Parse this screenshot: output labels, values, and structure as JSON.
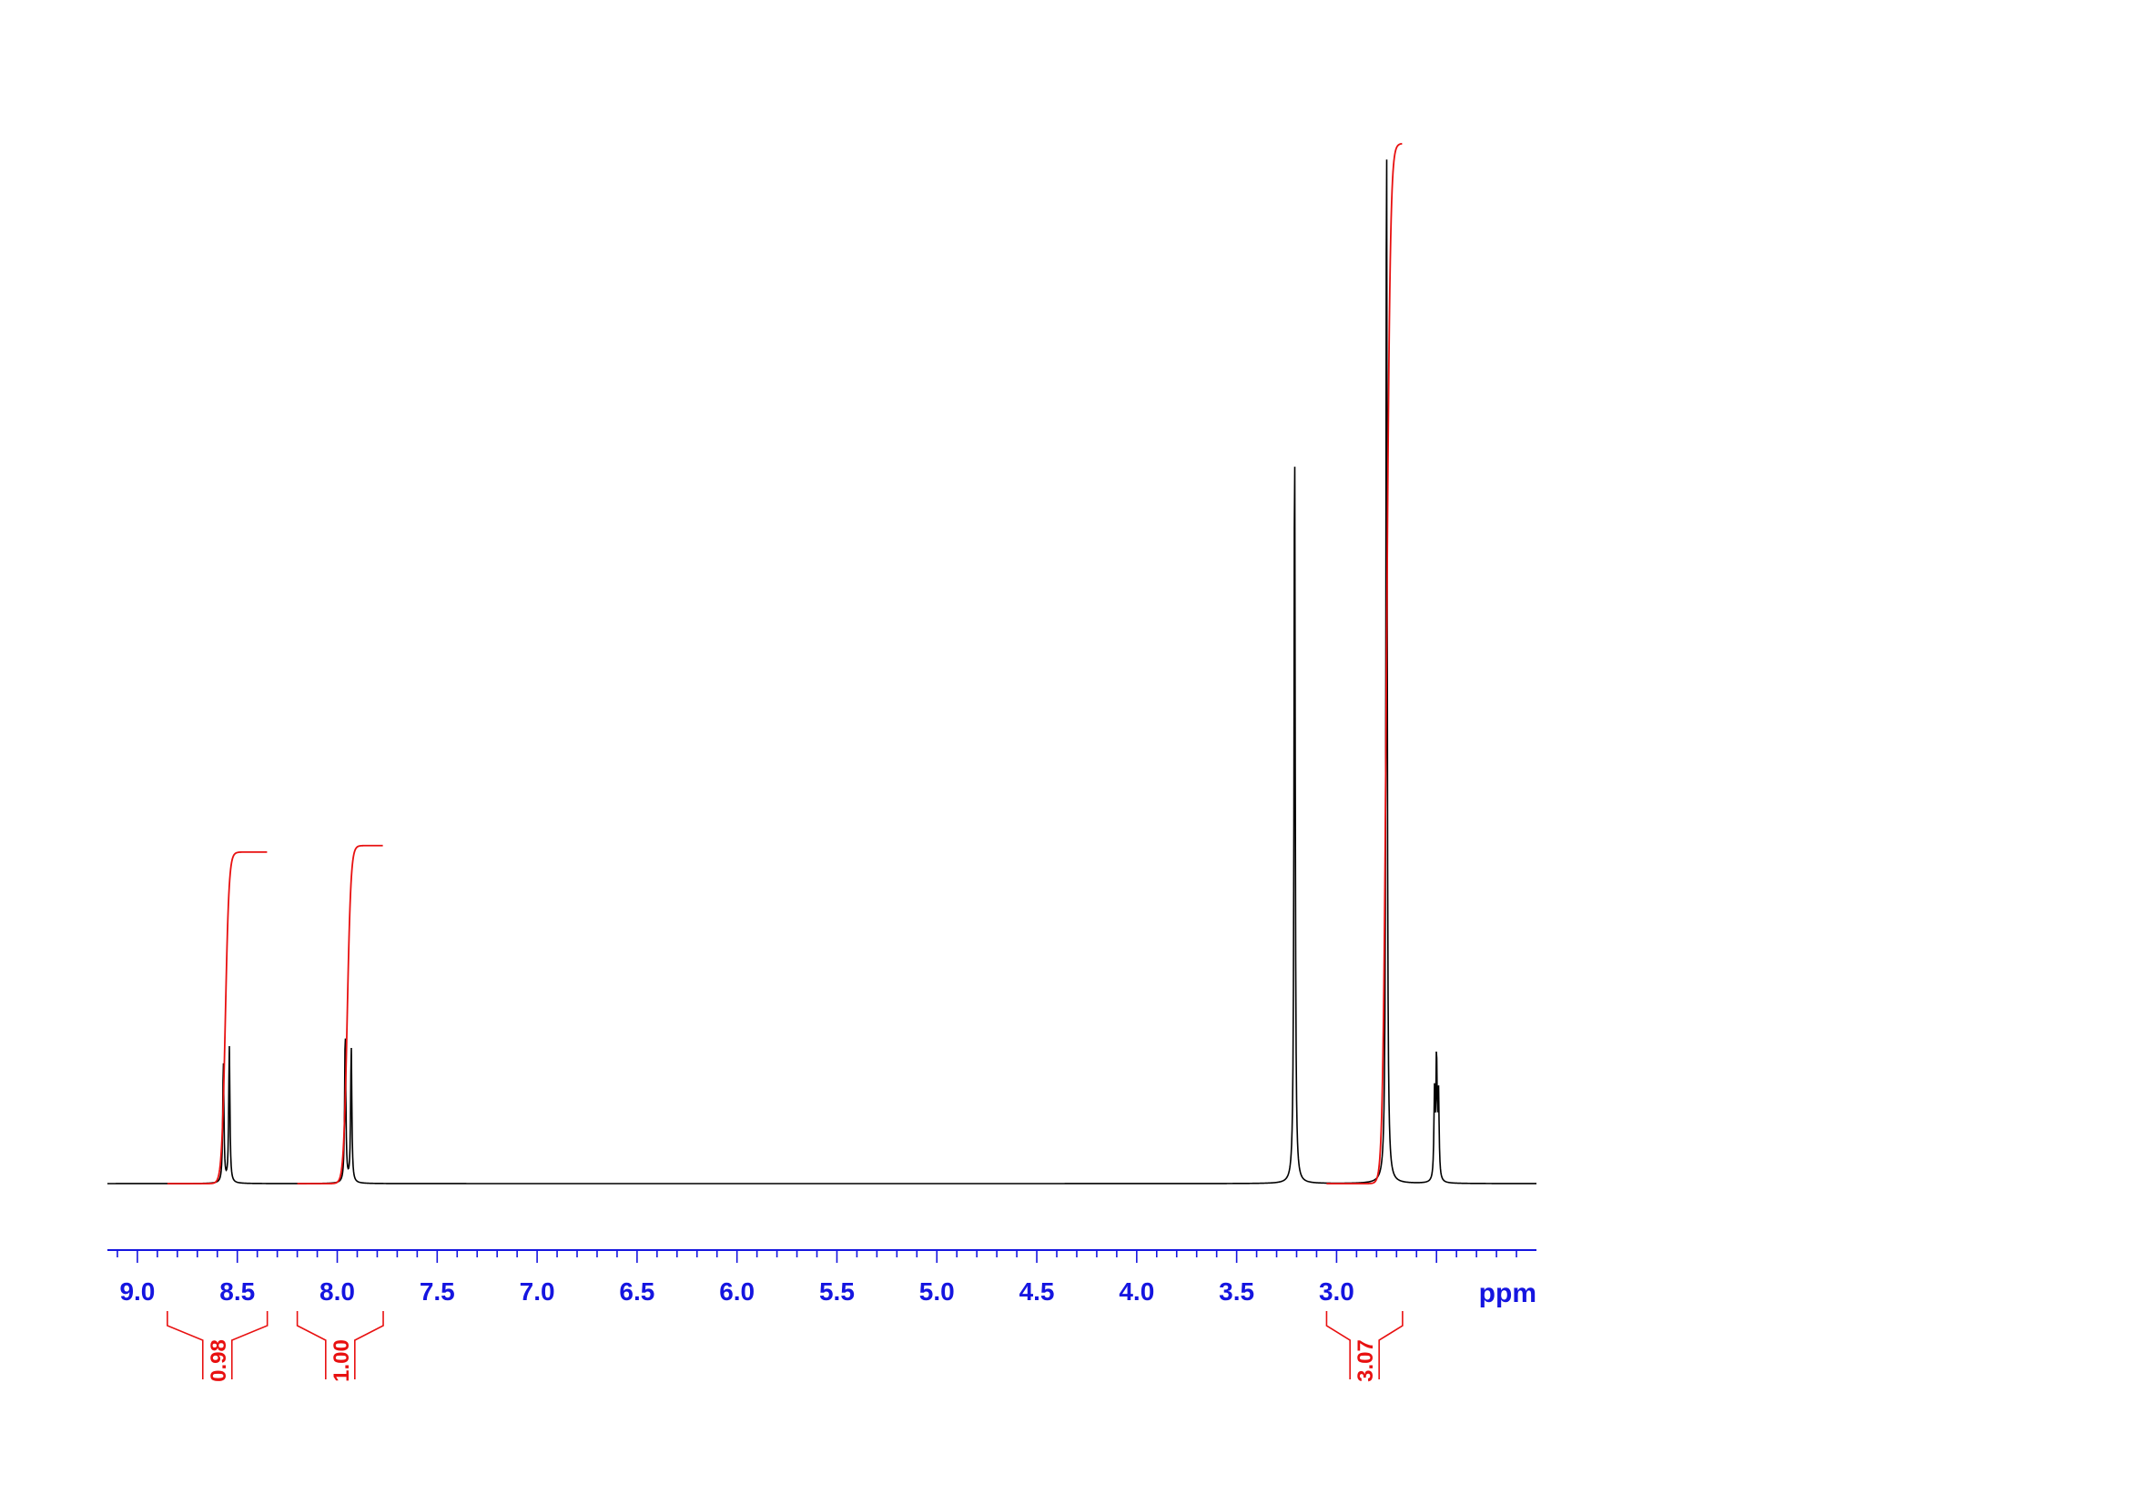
{
  "chart_data": {
    "type": "line",
    "title": "",
    "xlabel": "ppm",
    "ylabel": "",
    "xlim": [
      9.15,
      2.0
    ],
    "x_reversed": true,
    "ylim": [
      0,
      1.0
    ],
    "x_ticks": [
      "9.0",
      "8.5",
      "8.0",
      "7.5",
      "7.0",
      "6.5",
      "6.0",
      "5.5",
      "5.0",
      "4.5",
      "4.0",
      "3.5",
      "3.0"
    ],
    "tick_values": [
      9.0,
      8.5,
      8.0,
      7.5,
      7.0,
      6.5,
      6.0,
      5.5,
      5.0,
      4.5,
      4.0,
      3.5,
      3.0
    ],
    "minor_tick_step": 0.1,
    "peaks": [
      {
        "ppm": 8.57,
        "height": 0.113
      },
      {
        "ppm": 8.54,
        "height": 0.126
      },
      {
        "ppm": 7.96,
        "height": 0.141
      },
      {
        "ppm": 7.93,
        "height": 0.126
      },
      {
        "ppm": 3.21,
        "height": 0.703
      },
      {
        "ppm": 2.75,
        "height": 1.0
      },
      {
        "ppm": 2.51,
        "height": 0.078
      },
      {
        "ppm": 2.5,
        "height": 0.112
      },
      {
        "ppm": 2.49,
        "height": 0.078
      }
    ],
    "integrals": [
      {
        "label": "0.98",
        "from": 8.85,
        "to": 8.35,
        "center": 8.56,
        "plateau": 0.306
      },
      {
        "label": "1.00",
        "from": 8.2,
        "to": 7.77,
        "center": 7.95,
        "plateau": 0.312
      },
      {
        "label": "3.07",
        "from": 3.05,
        "to": 2.67,
        "center": 2.75,
        "plateau": 0.96
      }
    ],
    "colors": {
      "spectrum": "#000000",
      "integral": "#e81010",
      "axis": "#1515e0"
    }
  }
}
